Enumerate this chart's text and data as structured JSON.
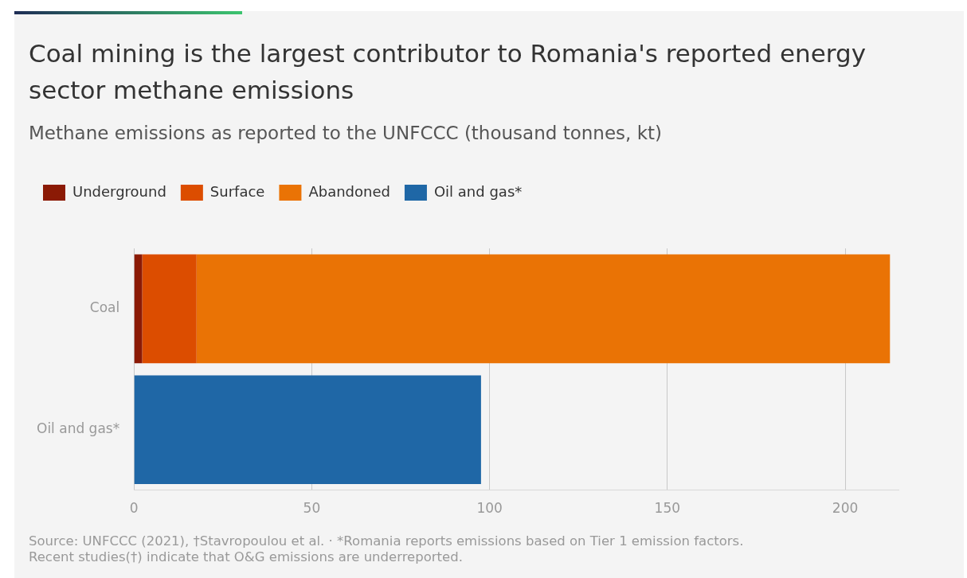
{
  "chart_data": {
    "type": "bar",
    "orientation": "horizontal",
    "stacked": true,
    "title": "Coal mining is the largest contributor to Romania's reported energy sector methane emissions",
    "subtitle": "Methane emissions as reported to the UNFCCC (thousand tonnes, kt)",
    "categories": [
      "Coal",
      "Oil and gas*"
    ],
    "series": [
      {
        "name": "Underground",
        "color": "#8b1a05",
        "values": [
          2.3,
          null
        ]
      },
      {
        "name": "Surface",
        "color": "#dc4d00",
        "values": [
          15.3,
          null
        ]
      },
      {
        "name": "Abandoned",
        "color": "#ea7305",
        "values": [
          195.0,
          null
        ]
      },
      {
        "name": "Oil and gas*",
        "color": "#1f67a6",
        "values": [
          null,
          97.6
        ]
      }
    ],
    "xlim": [
      0,
      215
    ],
    "xticks": [
      0,
      50,
      100,
      150,
      200
    ],
    "grid": "x",
    "legend": "top left",
    "annotations": [
      "Source: UNFCCC (2021), †Stavropoulou et al. · *Romania reports emissions based on Tier 1 emission factors. Recent studies(†) indicate that O&G emissions are underreported."
    ]
  }
}
